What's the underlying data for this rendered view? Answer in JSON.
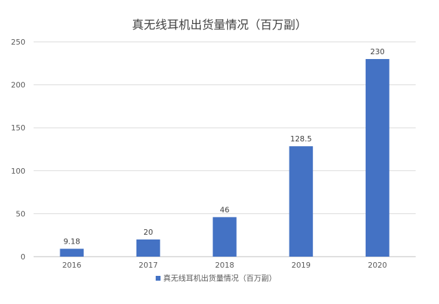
{
  "chart_data": {
    "type": "bar",
    "title": "真无线耳机出货量情况（百万副）",
    "categories": [
      "2016",
      "2017",
      "2018",
      "2019",
      "2020"
    ],
    "series": [
      {
        "name": "真无线耳机出货量情况（百万副）",
        "values": [
          9.18,
          20,
          46,
          128.5,
          230
        ],
        "data_labels": [
          "9.18",
          "20",
          "46",
          "128.5",
          "230"
        ]
      }
    ],
    "y_ticks": [
      "0",
      "50",
      "100",
      "150",
      "200",
      "250"
    ],
    "ylim": [
      0,
      250
    ],
    "xlabel": "",
    "ylabel": "",
    "grid": true,
    "legend_position": "bottom",
    "colors": {
      "bar": "#4472C4",
      "grid": "#D9D9D9",
      "axis": "#BFBFBF"
    }
  }
}
